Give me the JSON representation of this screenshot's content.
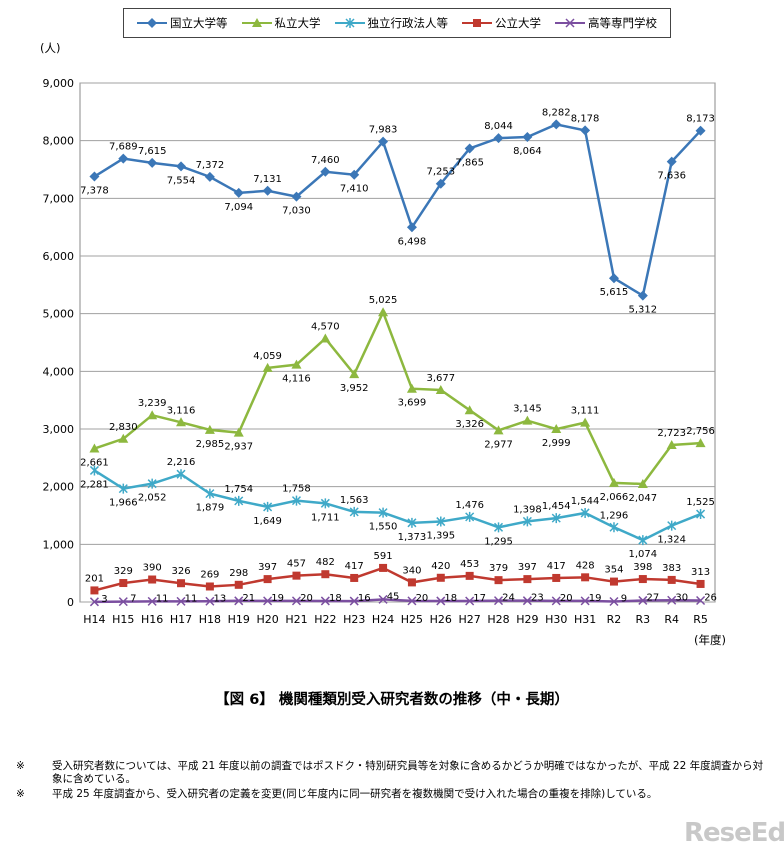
{
  "chart_data": {
    "type": "line",
    "ylabel": "(人)",
    "xlabel": "(年度)",
    "ylim": [
      0,
      9000
    ],
    "yticks": [
      "0",
      "1,000",
      "2,000",
      "3,000",
      "4,000",
      "5,000",
      "6,000",
      "7,000",
      "8,000",
      "9,000"
    ],
    "categories": [
      "H14",
      "H15",
      "H16",
      "H17",
      "H18",
      "H19",
      "H20",
      "H21",
      "H22",
      "H23",
      "H24",
      "H25",
      "H26",
      "H27",
      "H28",
      "H29",
      "H30",
      "H31",
      "R2",
      "R3",
      "R4",
      "R5"
    ],
    "legend_position": "top",
    "grid": "horizontal",
    "series": [
      {
        "name": "国立大学等",
        "color": "#3B77B7",
        "marker": "diamond",
        "values": [
          7378,
          7689,
          7615,
          7554,
          7372,
          7094,
          7131,
          7030,
          7460,
          7410,
          7983,
          6498,
          7253,
          7865,
          8044,
          8064,
          8282,
          8178,
          5615,
          5312,
          7636,
          8173
        ],
        "labels": [
          "7,378",
          "7,689",
          "7,615",
          "7,554",
          "7,372",
          "7,094",
          "7,131",
          "7,030",
          "7,460",
          "7,410",
          "7,983",
          "6,498",
          "7,253",
          "7,865",
          "8,044",
          "8,064",
          "8,282",
          "8,178",
          "5,615",
          "5,312",
          "7,636",
          "8,173"
        ]
      },
      {
        "name": "私立大学",
        "color": "#8DB83F",
        "marker": "triangle",
        "values": [
          2661,
          2830,
          3239,
          3116,
          2985,
          2937,
          4059,
          4116,
          4570,
          3952,
          5025,
          3699,
          3677,
          3326,
          2977,
          3145,
          2999,
          3111,
          2066,
          2047,
          2723,
          2756
        ],
        "labels": [
          "2,661",
          "2,830",
          "3,239",
          "3,116",
          "2,985",
          "2,937",
          "4,059",
          "4,116",
          "4,570",
          "3,952",
          "5,025",
          "3,699",
          "3,677",
          "3,326",
          "2,977",
          "3,145",
          "2,999",
          "3,111",
          "2,066",
          "2,047",
          "2,723",
          "2,756"
        ]
      },
      {
        "name": "独立行政法人等",
        "color": "#3FA9C8",
        "marker": "star",
        "values": [
          2281,
          1966,
          2052,
          2216,
          1879,
          1754,
          1649,
          1758,
          1711,
          1563,
          1550,
          1373,
          1395,
          1476,
          1295,
          1398,
          1454,
          1544,
          1296,
          1074,
          1324,
          1525
        ],
        "labels": [
          "2,281",
          "1,966",
          "2,052",
          "2,216",
          "1,879",
          "1,754",
          "1,649",
          "1,758",
          "1,711",
          "1,563",
          "1,550",
          "1,373",
          "1,395",
          "1,476",
          "1,295",
          "1,398",
          "1,454",
          "1,544",
          "1,296",
          "1,074",
          "1,324",
          "1,525"
        ]
      },
      {
        "name": "公立大学",
        "color": "#C0392F",
        "marker": "square",
        "values": [
          201,
          329,
          390,
          326,
          269,
          298,
          397,
          457,
          482,
          417,
          591,
          340,
          420,
          453,
          379,
          397,
          417,
          428,
          354,
          398,
          383,
          313
        ],
        "labels": [
          "201",
          "329",
          "390",
          "326",
          "269",
          "298",
          "397",
          "457",
          "482",
          "417",
          "591",
          "340",
          "420",
          "453",
          "379",
          "397",
          "417",
          "428",
          "354",
          "398",
          "383",
          "313"
        ]
      },
      {
        "name": "高等専門学校",
        "color": "#7B4FA0",
        "marker": "x",
        "values": [
          3,
          7,
          11,
          11,
          13,
          21,
          19,
          20,
          18,
          16,
          45,
          20,
          18,
          17,
          24,
          23,
          20,
          19,
          9,
          27,
          30,
          26
        ],
        "labels": [
          "3",
          "7",
          "11",
          "11",
          "13",
          "21",
          "19",
          "20",
          "18",
          "16",
          "45",
          "20",
          "18",
          "17",
          "24",
          "23",
          "20",
          "19",
          "9",
          "27",
          "30",
          "26"
        ]
      }
    ]
  },
  "figure_title": "【図 6】 機関種類別受入研究者数の推移（中・長期）",
  "notes": [
    {
      "mark": "※",
      "text": "受入研究者数については、平成 21 年度以前の調査ではポスドク・特別研究員等を対象に含めるかどうか明確ではなかったが、平成 22 年度調査から対象に含めている。"
    },
    {
      "mark": "※",
      "text": "平成 25 年度調査から、受入研究者の定義を変更(同じ年度内に同一研究者を複数機関で受け入れた場合の重複を排除)している。"
    }
  ],
  "watermark": "ReseEd"
}
